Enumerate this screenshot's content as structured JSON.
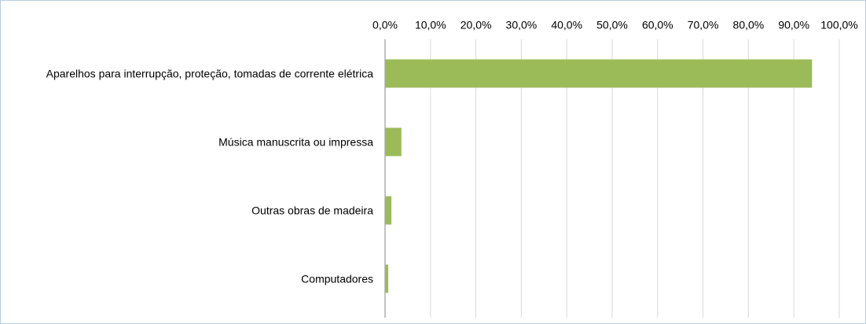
{
  "chart_data": {
    "type": "bar",
    "orientation": "horizontal",
    "categories": [
      "Aparelhos para interrupção, proteção, tomadas de corrente elétrica",
      "Música manuscrita ou impressa",
      "Outras obras de madeira",
      "Computadores"
    ],
    "values": [
      94.0,
      3.6,
      1.4,
      0.7
    ],
    "color": "#9bbb59",
    "xlim": [
      0,
      100
    ],
    "xticks": [
      {
        "value": 0,
        "label": "0,0%"
      },
      {
        "value": 10,
        "label": "10,0%"
      },
      {
        "value": 20,
        "label": "20,0%"
      },
      {
        "value": 30,
        "label": "30,0%"
      },
      {
        "value": 40,
        "label": "40,0%"
      },
      {
        "value": 50,
        "label": "50,0%"
      },
      {
        "value": 60,
        "label": "60,0%"
      },
      {
        "value": 70,
        "label": "70,0%"
      },
      {
        "value": 80,
        "label": "80,0%"
      },
      {
        "value": 90,
        "label": "90,0%"
      },
      {
        "value": 100,
        "label": "100,0%"
      }
    ],
    "grid": true
  }
}
